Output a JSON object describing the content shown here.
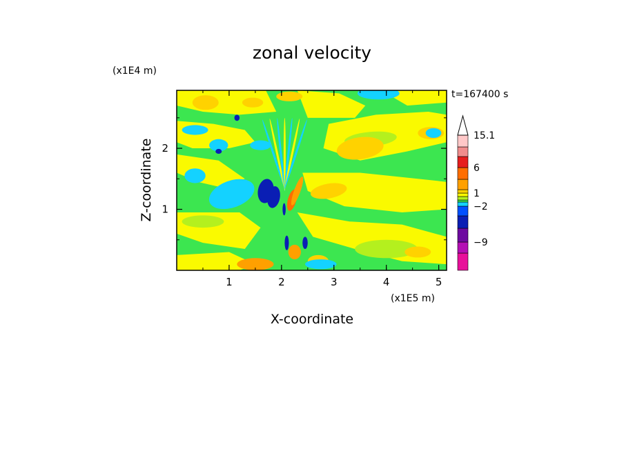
{
  "chart_data": {
    "type": "heatmap",
    "title": "zonal velocity",
    "xlabel": "X-coordinate",
    "ylabel": "Z-coordinate",
    "x_unit_label": "(x1E5 m)",
    "y_unit_label": "(x1E4 m)",
    "time_label": "t=167400 s",
    "xlim": [
      0,
      5.15
    ],
    "ylim": [
      0,
      2.95
    ],
    "x_ticks": [
      "1",
      "2",
      "3",
      "4",
      "5"
    ],
    "y_ticks": [
      "1",
      "2"
    ],
    "colorbar": {
      "levels": [
        -15,
        -12,
        -9,
        -6,
        -4,
        -2,
        -1,
        -0.5,
        0.5,
        1,
        2,
        4,
        6,
        9,
        12,
        15.1
      ],
      "labels": [
        "15.1",
        "6",
        "1",
        "-2",
        "-9"
      ],
      "colors": [
        "#e8109a",
        "#b40fb4",
        "#6e0aa0",
        "#0a1eb4",
        "#0050ff",
        "#14d2ff",
        "#3ce650",
        "#b4f01e",
        "#fafa00",
        "#ffd200",
        "#ffa000",
        "#ff6e00",
        "#e61e1e",
        "#f08c8c",
        "#ffc8c8"
      ]
    }
  }
}
